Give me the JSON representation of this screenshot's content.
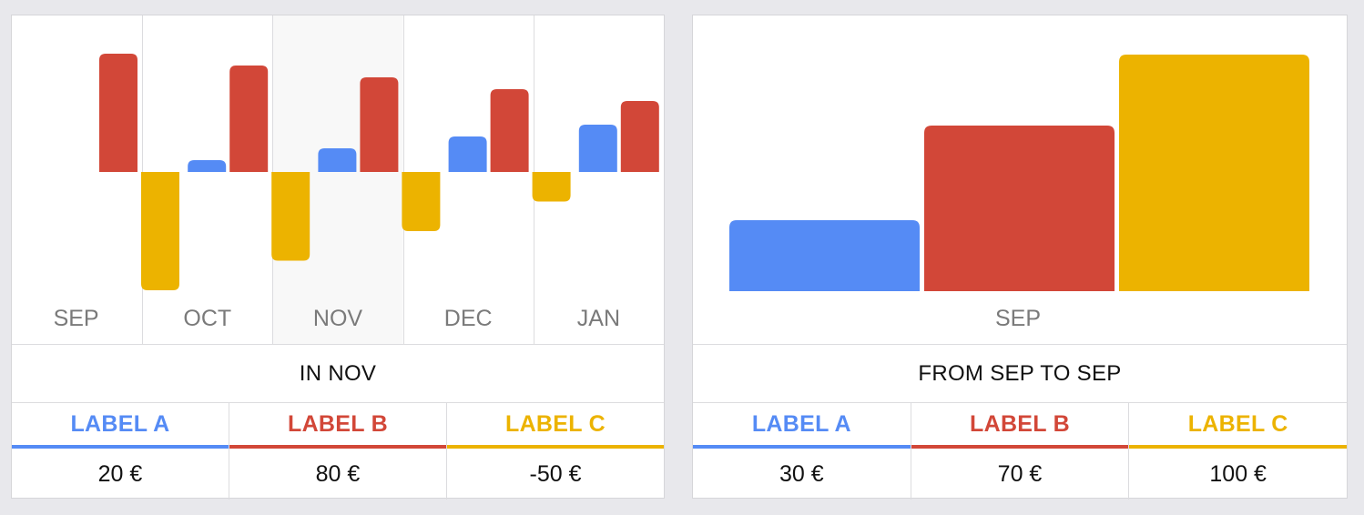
{
  "colors": {
    "a": "#558bf5",
    "b": "#d24738",
    "c": "#ecb300",
    "month_text": "#7a7a7a",
    "highlight": "#f8f8f8"
  },
  "left_panel": {
    "caption": "IN NOV",
    "legend": [
      {
        "label": "LABEL A",
        "value": "20 €",
        "color": "#558bf5"
      },
      {
        "label": "LABEL B",
        "value": "80 €",
        "color": "#d24738"
      },
      {
        "label": "LABEL C",
        "value": "-50 €",
        "color": "#ecb300"
      }
    ]
  },
  "right_panel": {
    "caption": "FROM SEP TO SEP",
    "legend": [
      {
        "label": "LABEL A",
        "value": "30 €",
        "color": "#558bf5"
      },
      {
        "label": "LABEL B",
        "value": "70 €",
        "color": "#d24738"
      },
      {
        "label": "LABEL C",
        "value": "100 €",
        "color": "#ecb300"
      }
    ]
  },
  "chart_data": [
    {
      "type": "bar",
      "categories": [
        "SEP",
        "OCT",
        "NOV",
        "DEC",
        "JAN"
      ],
      "highlighted_category": "NOV",
      "series": [
        {
          "name": "LABEL A",
          "values": [
            0,
            10,
            20,
            30,
            40
          ]
        },
        {
          "name": "LABEL B",
          "values": [
            100,
            90,
            80,
            70,
            60
          ]
        },
        {
          "name": "LABEL C",
          "values": [
            -100,
            -75,
            -50,
            -25,
            0
          ]
        }
      ]
    },
    {
      "type": "bar",
      "categories": [
        "SEP"
      ],
      "series": [
        {
          "name": "LABEL A",
          "values": [
            30
          ]
        },
        {
          "name": "LABEL B",
          "values": [
            70
          ]
        },
        {
          "name": "LABEL C",
          "values": [
            100
          ]
        }
      ]
    }
  ]
}
